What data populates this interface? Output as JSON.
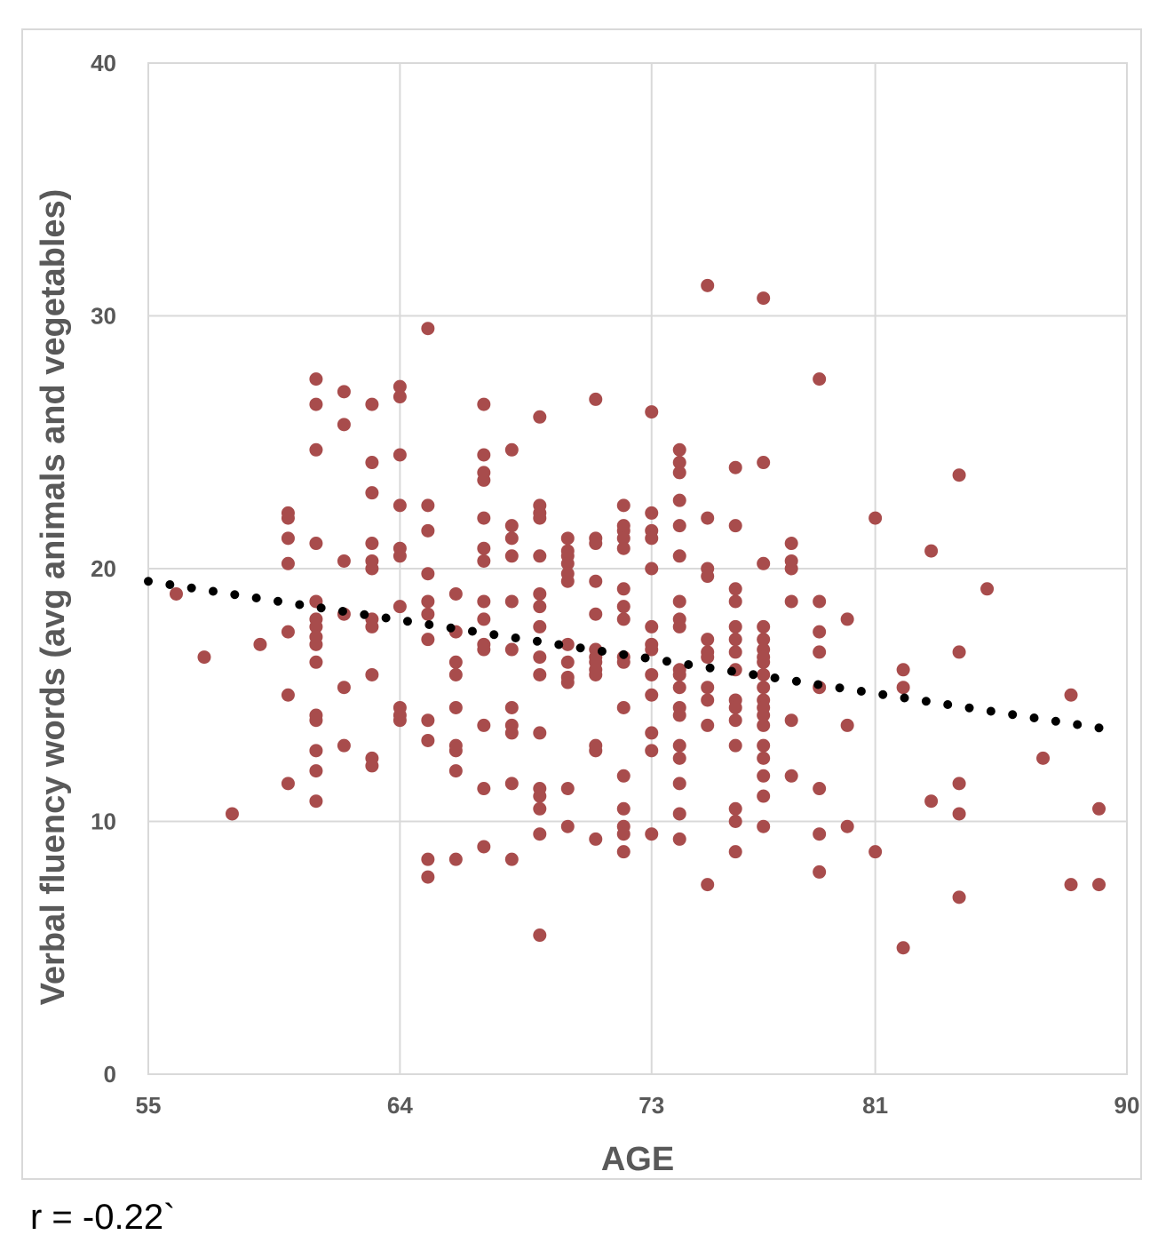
{
  "caption": "r = -0.22`",
  "colors": {
    "points": "#a84c4c",
    "trendline": "#000000",
    "grid": "#d9d9d9",
    "text": "#595959"
  },
  "chart_data": {
    "type": "scatter",
    "xlabel": "AGE",
    "ylabel": "Verbal fluency words (avg animals and vegetables)",
    "x_ticks": [
      55,
      64,
      73,
      81,
      90
    ],
    "y_ticks": [
      0,
      10,
      20,
      30,
      40
    ],
    "xlim": [
      55,
      90
    ],
    "ylim": [
      0,
      40
    ],
    "grid": true,
    "trendline": {
      "style": "dotted",
      "start": [
        55,
        19.5
      ],
      "end": [
        89,
        13.7
      ]
    },
    "points": [
      [
        56,
        19
      ],
      [
        57,
        16.5
      ],
      [
        58,
        10.3
      ],
      [
        59,
        17
      ],
      [
        60,
        22.2
      ],
      [
        60,
        22
      ],
      [
        60,
        21.2
      ],
      [
        60,
        20.2
      ],
      [
        60,
        17.5
      ],
      [
        60,
        15
      ],
      [
        60,
        11.5
      ],
      [
        61,
        27.5
      ],
      [
        61,
        26.5
      ],
      [
        61,
        24.7
      ],
      [
        61,
        21
      ],
      [
        61,
        18.7
      ],
      [
        61,
        18
      ],
      [
        61,
        17.7
      ],
      [
        61,
        17.3
      ],
      [
        61,
        17
      ],
      [
        61,
        16.3
      ],
      [
        61,
        14.2
      ],
      [
        61,
        14
      ],
      [
        61,
        12.8
      ],
      [
        61,
        12
      ],
      [
        61,
        10.8
      ],
      [
        62,
        27
      ],
      [
        62,
        25.7
      ],
      [
        62,
        20.3
      ],
      [
        62,
        18.2
      ],
      [
        62,
        15.3
      ],
      [
        62,
        13
      ],
      [
        63,
        26.5
      ],
      [
        63,
        24.2
      ],
      [
        63,
        23
      ],
      [
        63,
        21
      ],
      [
        63,
        20.3
      ],
      [
        63,
        20
      ],
      [
        63,
        18
      ],
      [
        63,
        17.7
      ],
      [
        63,
        15.8
      ],
      [
        63,
        12.5
      ],
      [
        63,
        12.2
      ],
      [
        64,
        27.2
      ],
      [
        64,
        26.8
      ],
      [
        64,
        24.5
      ],
      [
        64,
        22.5
      ],
      [
        64,
        20.8
      ],
      [
        64,
        20.5
      ],
      [
        64,
        18.5
      ],
      [
        64,
        14.5
      ],
      [
        64,
        14.2
      ],
      [
        64,
        14
      ],
      [
        65,
        29.5
      ],
      [
        65,
        22.5
      ],
      [
        65,
        21.5
      ],
      [
        65,
        19.8
      ],
      [
        65,
        18.7
      ],
      [
        65,
        18.2
      ],
      [
        65,
        17.2
      ],
      [
        65,
        14
      ],
      [
        65,
        13.2
      ],
      [
        65,
        8.5
      ],
      [
        65,
        7.8
      ],
      [
        66,
        19
      ],
      [
        66,
        17.5
      ],
      [
        66,
        16.3
      ],
      [
        66,
        15.8
      ],
      [
        66,
        14.5
      ],
      [
        66,
        13
      ],
      [
        66,
        12.8
      ],
      [
        66,
        12
      ],
      [
        66,
        8.5
      ],
      [
        67,
        26.5
      ],
      [
        67,
        24.5
      ],
      [
        67,
        23.8
      ],
      [
        67,
        23.5
      ],
      [
        67,
        22
      ],
      [
        67,
        20.8
      ],
      [
        67,
        20.3
      ],
      [
        67,
        18.7
      ],
      [
        67,
        18
      ],
      [
        67,
        17
      ],
      [
        67,
        16.8
      ],
      [
        67,
        13.8
      ],
      [
        67,
        11.3
      ],
      [
        67,
        9
      ],
      [
        68,
        24.7
      ],
      [
        68,
        21.7
      ],
      [
        68,
        21.2
      ],
      [
        68,
        20.5
      ],
      [
        68,
        18.7
      ],
      [
        68,
        16.8
      ],
      [
        68,
        14.5
      ],
      [
        68,
        13.8
      ],
      [
        68,
        13.5
      ],
      [
        68,
        11.5
      ],
      [
        68,
        8.5
      ],
      [
        69,
        26
      ],
      [
        69,
        22.5
      ],
      [
        69,
        22.2
      ],
      [
        69,
        22
      ],
      [
        69,
        20.5
      ],
      [
        69,
        19
      ],
      [
        69,
        18.5
      ],
      [
        69,
        17.7
      ],
      [
        69,
        16.5
      ],
      [
        69,
        15.8
      ],
      [
        69,
        13.5
      ],
      [
        69,
        11.3
      ],
      [
        69,
        11
      ],
      [
        69,
        10.5
      ],
      [
        69,
        9.5
      ],
      [
        69,
        5.5
      ],
      [
        70,
        21.2
      ],
      [
        70,
        20.7
      ],
      [
        70,
        20.5
      ],
      [
        70,
        20.2
      ],
      [
        70,
        19.8
      ],
      [
        70,
        19.5
      ],
      [
        70,
        17
      ],
      [
        70,
        16.3
      ],
      [
        70,
        15.7
      ],
      [
        70,
        15.5
      ],
      [
        70,
        11.3
      ],
      [
        70,
        9.8
      ],
      [
        71,
        26.7
      ],
      [
        71,
        21.2
      ],
      [
        71,
        21
      ],
      [
        71,
        19.5
      ],
      [
        71,
        18.2
      ],
      [
        71,
        16.8
      ],
      [
        71,
        16.5
      ],
      [
        71,
        16.3
      ],
      [
        71,
        16
      ],
      [
        71,
        15.8
      ],
      [
        71,
        13
      ],
      [
        71,
        12.8
      ],
      [
        71,
        9.3
      ],
      [
        72,
        22.5
      ],
      [
        72,
        21.7
      ],
      [
        72,
        21.5
      ],
      [
        72,
        21.2
      ],
      [
        72,
        20.8
      ],
      [
        72,
        19.2
      ],
      [
        72,
        18.5
      ],
      [
        72,
        18
      ],
      [
        72,
        16.5
      ],
      [
        72,
        16.3
      ],
      [
        72,
        14.5
      ],
      [
        72,
        11.8
      ],
      [
        72,
        10.5
      ],
      [
        72,
        9.8
      ],
      [
        72,
        9.5
      ],
      [
        72,
        8.8
      ],
      [
        73,
        26.2
      ],
      [
        73,
        22.2
      ],
      [
        73,
        21.5
      ],
      [
        73,
        21.2
      ],
      [
        73,
        20
      ],
      [
        73,
        17.7
      ],
      [
        73,
        17
      ],
      [
        73,
        16.8
      ],
      [
        73,
        15.8
      ],
      [
        73,
        15
      ],
      [
        73,
        13.5
      ],
      [
        73,
        12.8
      ],
      [
        73,
        9.5
      ],
      [
        74,
        24.7
      ],
      [
        74,
        24.2
      ],
      [
        74,
        23.8
      ],
      [
        74,
        22.7
      ],
      [
        74,
        21.7
      ],
      [
        74,
        20.5
      ],
      [
        74,
        18.7
      ],
      [
        74,
        18
      ],
      [
        74,
        17.7
      ],
      [
        74,
        16
      ],
      [
        74,
        15.8
      ],
      [
        74,
        15.3
      ],
      [
        74,
        14.5
      ],
      [
        74,
        14.2
      ],
      [
        74,
        13
      ],
      [
        74,
        12.5
      ],
      [
        74,
        11.5
      ],
      [
        74,
        10.3
      ],
      [
        74,
        9.3
      ],
      [
        75,
        31.2
      ],
      [
        75,
        22
      ],
      [
        75,
        20
      ],
      [
        75,
        19.7
      ],
      [
        75,
        17.2
      ],
      [
        75,
        16.7
      ],
      [
        75,
        16.5
      ],
      [
        75,
        15.3
      ],
      [
        75,
        14.8
      ],
      [
        75,
        13.8
      ],
      [
        75,
        7.5
      ],
      [
        76,
        24
      ],
      [
        76,
        21.7
      ],
      [
        76,
        19.2
      ],
      [
        76,
        18.7
      ],
      [
        76,
        17.7
      ],
      [
        76,
        17.2
      ],
      [
        76,
        16.7
      ],
      [
        76,
        16
      ],
      [
        76,
        14.8
      ],
      [
        76,
        14.5
      ],
      [
        76,
        14
      ],
      [
        76,
        13
      ],
      [
        76,
        10.5
      ],
      [
        76,
        10
      ],
      [
        76,
        8.8
      ],
      [
        77,
        30.7
      ],
      [
        77,
        24.2
      ],
      [
        77,
        20.2
      ],
      [
        77,
        17.7
      ],
      [
        77,
        17.2
      ],
      [
        77,
        16.8
      ],
      [
        77,
        16.5
      ],
      [
        77,
        16.3
      ],
      [
        77,
        15.8
      ],
      [
        77,
        15.3
      ],
      [
        77,
        14.8
      ],
      [
        77,
        14.5
      ],
      [
        77,
        14.2
      ],
      [
        77,
        13.8
      ],
      [
        77,
        13
      ],
      [
        77,
        12.5
      ],
      [
        77,
        11.8
      ],
      [
        77,
        11
      ],
      [
        77,
        9.8
      ],
      [
        78,
        21
      ],
      [
        78,
        20.3
      ],
      [
        78,
        20
      ],
      [
        78,
        18.7
      ],
      [
        78,
        14
      ],
      [
        78,
        11.8
      ],
      [
        79,
        27.5
      ],
      [
        79,
        18.7
      ],
      [
        79,
        17.5
      ],
      [
        79,
        16.7
      ],
      [
        79,
        15.3
      ],
      [
        79,
        11.3
      ],
      [
        79,
        9.5
      ],
      [
        79,
        8
      ],
      [
        80,
        18
      ],
      [
        80,
        13.8
      ],
      [
        80,
        9.8
      ],
      [
        81,
        22
      ],
      [
        81,
        8.8
      ],
      [
        82,
        16
      ],
      [
        82,
        15.3
      ],
      [
        82,
        5
      ],
      [
        83,
        20.7
      ],
      [
        83,
        10.8
      ],
      [
        84,
        23.7
      ],
      [
        84,
        16.7
      ],
      [
        84,
        11.5
      ],
      [
        84,
        10.3
      ],
      [
        84,
        7
      ],
      [
        85,
        19.2
      ],
      [
        87,
        12.5
      ],
      [
        88,
        15
      ],
      [
        88,
        7.5
      ],
      [
        89,
        10.5
      ],
      [
        89,
        7.5
      ]
    ]
  }
}
